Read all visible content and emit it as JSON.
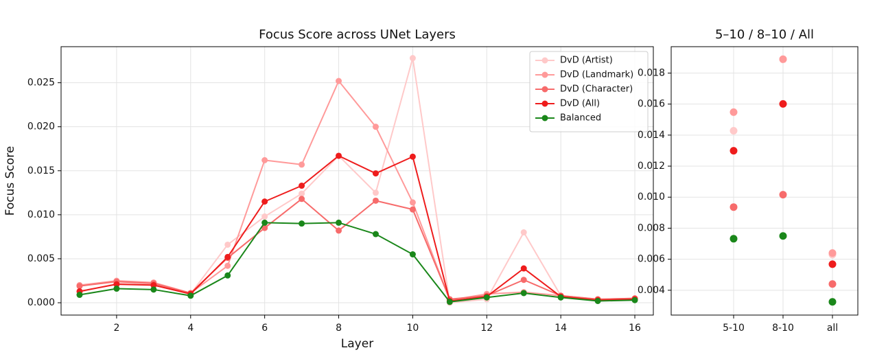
{
  "chart_data": [
    {
      "type": "line",
      "title": "Focus Score across UNet Layers",
      "x_label": "Layer",
      "y_label": "Focus Score",
      "x": [
        1,
        2,
        3,
        4,
        5,
        6,
        7,
        8,
        9,
        10,
        11,
        12,
        13,
        14,
        15,
        16
      ],
      "series": [
        {
          "name": "DvD (Artist)",
          "color": "#ffc9c9",
          "values": [
            0.0012,
            0.0022,
            0.0021,
            0.001,
            0.0066,
            0.0098,
            0.0124,
            0.0167,
            0.0125,
            0.0278,
            0.0,
            0.0004,
            0.008,
            0.0008,
            0.0003,
            0.0004
          ]
        },
        {
          "name": "DvD (Landmark)",
          "color": "#ff9a9a",
          "values": [
            0.002,
            0.0025,
            0.0023,
            0.0011,
            0.0042,
            0.0162,
            0.0157,
            0.0252,
            0.02,
            0.0114,
            0.0003,
            0.001,
            0.0012,
            0.0008,
            0.0004,
            0.0005
          ]
        },
        {
          "name": "DvD (Character)",
          "color": "#f76b6b",
          "values": [
            0.0019,
            0.0024,
            0.0022,
            0.0011,
            0.0051,
            0.0085,
            0.0118,
            0.0082,
            0.0116,
            0.0106,
            0.0004,
            0.0008,
            0.0026,
            0.0008,
            0.0004,
            0.0005
          ]
        },
        {
          "name": "DvD (All)",
          "color": "#ee1c1c",
          "values": [
            0.0013,
            0.0021,
            0.002,
            0.001,
            0.0052,
            0.0115,
            0.0133,
            0.0167,
            0.0147,
            0.0166,
            0.0002,
            0.0007,
            0.0039,
            0.0007,
            0.0003,
            0.0004
          ]
        },
        {
          "name": "Balanced",
          "color": "#1a871a",
          "values": [
            0.0009,
            0.0016,
            0.0015,
            0.0008,
            0.0031,
            0.0091,
            0.009,
            0.0091,
            0.0078,
            0.0055,
            0.0001,
            0.0006,
            0.0011,
            0.0006,
            0.0002,
            0.0003
          ]
        }
      ],
      "xlim": [
        0.5,
        16.5
      ],
      "ylim": [
        -0.0014,
        0.0291
      ],
      "xticks": [
        2,
        4,
        6,
        8,
        10,
        12,
        14,
        16
      ],
      "yticks": [
        {
          "value": 0,
          "label": "0.000"
        },
        {
          "value": 0.005,
          "label": "0.005"
        },
        {
          "value": 0.01,
          "label": "0.010"
        },
        {
          "value": 0.015,
          "label": "0.015"
        },
        {
          "value": 0.02,
          "label": "0.020"
        },
        {
          "value": 0.025,
          "label": "0.025"
        }
      ],
      "grid": true,
      "legend": "upper-right"
    },
    {
      "type": "scatter",
      "title": "5–10 / 8–10 / All",
      "categories": [
        "5-10",
        "8-10",
        "all"
      ],
      "series": [
        {
          "color": "#ffc9c9",
          "values": [
            0.01428,
            0.01889,
            0.0063
          ]
        },
        {
          "color": "#ff9a9a",
          "values": [
            0.01548,
            0.01889,
            0.0064
          ]
        },
        {
          "color": "#f76b6b",
          "values": [
            0.00936,
            0.01016,
            0.0044
          ]
        },
        {
          "color": "#ee1c1c",
          "values": [
            0.01299,
            0.01601,
            0.00568
          ]
        },
        {
          "color": "#1a871a",
          "values": [
            0.00732,
            0.0075,
            0.00325
          ]
        }
      ],
      "ylim": [
        0.0024,
        0.0197
      ],
      "yticks": [
        {
          "value": 0.004,
          "label": "0.004"
        },
        {
          "value": 0.006,
          "label": "0.006"
        },
        {
          "value": 0.008,
          "label": "0.008"
        },
        {
          "value": 0.01,
          "label": "0.010"
        },
        {
          "value": 0.012,
          "label": "0.012"
        },
        {
          "value": 0.014,
          "label": "0.014"
        },
        {
          "value": 0.016,
          "label": "0.016"
        },
        {
          "value": 0.018,
          "label": "0.018"
        }
      ],
      "grid": true
    }
  ]
}
